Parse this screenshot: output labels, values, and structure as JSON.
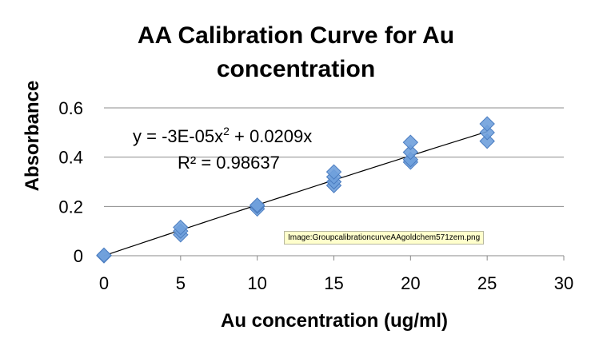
{
  "chart_data": {
    "type": "scatter",
    "title_lines": [
      "AA Calibration Curve for Au",
      "concentration"
    ],
    "xlabel": "Au concentration (ug/ml)",
    "ylabel": "Absorbance",
    "xlim": [
      0,
      30
    ],
    "ylim": [
      0,
      0.6
    ],
    "x_ticks": [
      "0",
      "5",
      "10",
      "15",
      "20",
      "25",
      "30"
    ],
    "y_ticks": [
      "0",
      "0.2",
      "0.4",
      "0.6"
    ],
    "grid": "horizontal",
    "legend": "none",
    "marker": "diamond",
    "marker_color": "#6fa0dc",
    "series": [
      {
        "points": [
          [
            0,
            0.0
          ],
          [
            0,
            0.002
          ],
          [
            5,
            0.085
          ],
          [
            5,
            0.1
          ],
          [
            5,
            0.115
          ],
          [
            10,
            0.19
          ],
          [
            10,
            0.2
          ],
          [
            10,
            0.205
          ],
          [
            15,
            0.285
          ],
          [
            15,
            0.3
          ],
          [
            15,
            0.32
          ],
          [
            15,
            0.34
          ],
          [
            20,
            0.38
          ],
          [
            20,
            0.39
          ],
          [
            20,
            0.42
          ],
          [
            20,
            0.46
          ],
          [
            25,
            0.465
          ],
          [
            25,
            0.5
          ],
          [
            25,
            0.535
          ]
        ]
      }
    ],
    "trendline": {
      "type": "polynomial",
      "a": -3e-05,
      "b": 0.0209,
      "c": 0,
      "x_range": [
        0,
        25
      ],
      "color": "#000000",
      "equation_text": "y = -3E-05x",
      "equation_superscript": "2",
      "equation_tail": " + 0.0209x",
      "r2_text": "R² = 0.98637"
    }
  },
  "tooltip": {
    "text": "Image:GroupcalibrationcurveAAgoldchem571zem.png"
  }
}
